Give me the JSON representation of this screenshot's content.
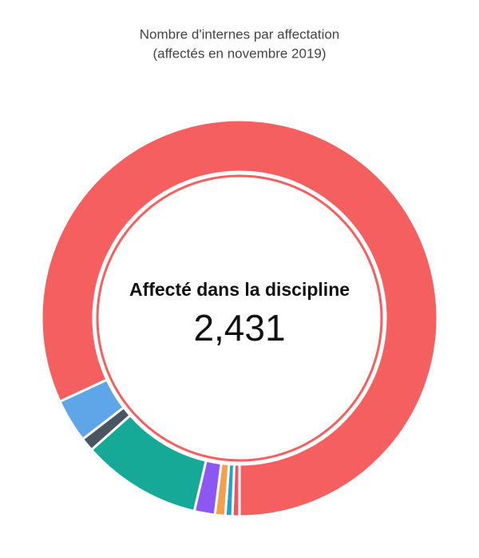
{
  "chart_data": {
    "type": "donut",
    "title": "Nombre d'internes par affectation",
    "subtitle": "(affectés en novembre 2019)",
    "categories": [
      null,
      null,
      null,
      null,
      null,
      null,
      null,
      "Affecté dans la discipline"
    ],
    "values": [
      17,
      17,
      25,
      50,
      290,
      33,
      105,
      2431
    ],
    "value_labels": [
      null,
      null,
      null,
      null,
      null,
      null,
      null,
      "2,431"
    ],
    "colors": [
      "#ee5563",
      "#1ba6c9",
      "#f2a04c",
      "#8c57f2",
      "#17a997",
      "#4a5561",
      "#5ea6e7",
      "#f65f60"
    ]
  }
}
